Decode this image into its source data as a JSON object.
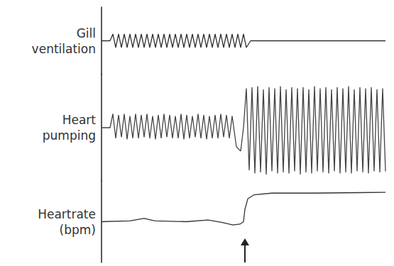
{
  "chart_data": [
    {
      "type": "line",
      "ylabel": "Gill ventilation",
      "color": "#333333",
      "tick_labels": false,
      "xlim": [
        0,
        400
      ],
      "ylim": [
        0,
        10
      ],
      "x": [
        0,
        12,
        16,
        20,
        24,
        28,
        32,
        36,
        40,
        44,
        48,
        52,
        56,
        60,
        64,
        68,
        72,
        76,
        80,
        84,
        88,
        92,
        96,
        100,
        104,
        108,
        112,
        116,
        120,
        124,
        128,
        132,
        136,
        140,
        144,
        148,
        152,
        156,
        160,
        164,
        168,
        172,
        176,
        180,
        184,
        188,
        192,
        196,
        200,
        204,
        210,
        400
      ],
      "values": [
        5,
        5,
        6,
        4,
        6,
        4,
        6,
        4,
        6,
        4,
        6,
        4,
        6,
        4,
        6,
        4,
        6,
        4,
        6,
        4,
        6,
        4,
        6,
        4,
        6,
        4,
        6,
        4,
        6,
        4,
        6,
        4,
        6,
        4,
        6,
        4,
        6,
        4,
        6,
        4,
        6,
        4,
        6,
        4,
        6,
        4,
        6,
        4,
        6,
        4,
        5,
        5
      ]
    },
    {
      "type": "line",
      "ylabel": "Heart pumping",
      "color": "#444444",
      "tick_labels": false,
      "xlim": [
        0,
        400
      ],
      "ylim": [
        0,
        10
      ],
      "x": [
        0,
        12,
        16,
        20,
        24,
        28,
        32,
        36,
        40,
        44,
        48,
        52,
        56,
        60,
        64,
        68,
        72,
        76,
        80,
        84,
        88,
        92,
        96,
        100,
        104,
        108,
        112,
        116,
        120,
        124,
        128,
        132,
        136,
        140,
        144,
        148,
        152,
        156,
        160,
        164,
        168,
        172,
        176,
        180,
        184,
        190,
        196,
        200,
        204,
        208,
        212,
        216,
        220,
        224,
        228,
        232,
        236,
        240,
        244,
        248,
        252,
        256,
        260,
        264,
        268,
        272,
        276,
        280,
        284,
        288,
        292,
        296,
        300,
        304,
        308,
        312,
        316,
        320,
        324,
        328,
        332,
        336,
        340,
        344,
        348,
        352,
        356,
        360,
        364,
        368,
        372,
        376,
        380,
        384,
        388,
        392,
        396,
        400
      ],
      "values": [
        5,
        5,
        6.3,
        4,
        6.2,
        4.1,
        6.3,
        3.9,
        6.1,
        4,
        6.3,
        4,
        6.2,
        4.1,
        6.3,
        4,
        6.1,
        3.9,
        6.2,
        4,
        6.3,
        4.1,
        6.2,
        4,
        6.1,
        4,
        6.3,
        3.9,
        6.2,
        4,
        6.1,
        4.1,
        6.3,
        4,
        6.2,
        3.9,
        6.1,
        4,
        6.2,
        4,
        6.3,
        4.1,
        6.2,
        4,
        6.1,
        3.2,
        2.8,
        5,
        8.7,
        1,
        8.8,
        0.7,
        8.9,
        0.8,
        8.6,
        0.6,
        8.8,
        0.9,
        8.7,
        0.7,
        8.9,
        0.8,
        8.6,
        0.7,
        8.8,
        0.9,
        8.7,
        0.6,
        8.8,
        0.8,
        8.6,
        0.7,
        8.9,
        0.9,
        8.7,
        0.8,
        8.8,
        0.7,
        8.6,
        0.9,
        8.8,
        0.7,
        8.7,
        0.8,
        8.9,
        0.7,
        8.6,
        0.9,
        8.8,
        0.8,
        8.7,
        0.7,
        8.8,
        0.9,
        8.6,
        0.8,
        8.7,
        0.9
      ]
    },
    {
      "type": "line",
      "ylabel": "Heartrate (bpm)",
      "color": "#333333",
      "tick_labels": false,
      "xlim": [
        0,
        400
      ],
      "ylim": [
        0,
        10
      ],
      "x": [
        0,
        40,
        60,
        75,
        120,
        150,
        170,
        185,
        195,
        200,
        202,
        206,
        215,
        240,
        300,
        400
      ],
      "values": [
        5,
        5.1,
        5.4,
        5.1,
        5,
        5.2,
        4.9,
        4.6,
        4.7,
        5,
        6.5,
        7.8,
        8.3,
        8.5,
        8.5,
        8.6
      ],
      "arrow": {
        "x": 202
      }
    }
  ]
}
